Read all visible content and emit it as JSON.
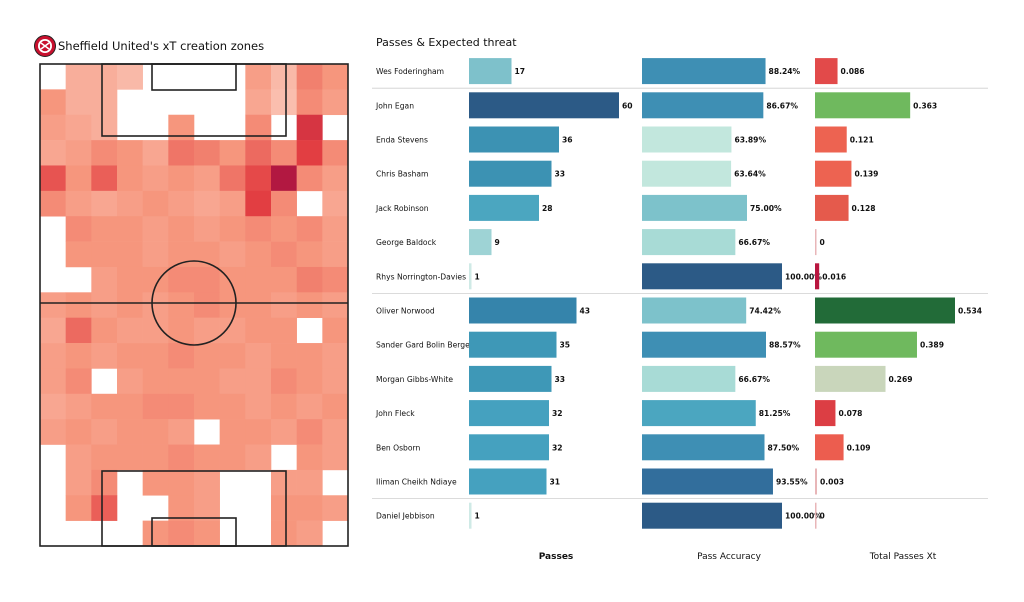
{
  "pitch": {
    "title": "Sheffield United's xT creation zones",
    "logo_icon": "sheffield-united-crest-icon",
    "grid": [
      [
        null,
        0.25,
        0.25,
        0.18,
        null,
        null,
        null,
        null,
        0.35,
        0.18,
        0.5,
        0.4
      ],
      [
        0.4,
        0.25,
        0.25,
        null,
        null,
        null,
        null,
        null,
        0.3,
        0.15,
        0.45,
        0.35
      ],
      [
        0.35,
        0.3,
        0.25,
        null,
        null,
        0.4,
        null,
        null,
        0.45,
        null,
        0.85,
        null
      ],
      [
        0.3,
        0.35,
        0.45,
        0.4,
        0.3,
        0.55,
        0.5,
        0.4,
        0.6,
        0.45,
        0.8,
        0.45
      ],
      [
        0.7,
        0.4,
        0.65,
        0.4,
        0.35,
        0.4,
        0.35,
        0.55,
        0.75,
        1.0,
        0.45,
        0.35
      ],
      [
        0.45,
        0.35,
        0.3,
        0.35,
        0.4,
        0.35,
        0.3,
        0.35,
        0.8,
        0.45,
        null,
        0.3
      ],
      [
        null,
        0.45,
        0.4,
        0.4,
        0.35,
        0.4,
        0.35,
        0.4,
        0.45,
        0.4,
        0.45,
        0.35
      ],
      [
        null,
        0.4,
        0.4,
        0.4,
        0.35,
        0.4,
        0.4,
        0.35,
        0.4,
        0.45,
        0.4,
        0.35
      ],
      [
        null,
        null,
        0.35,
        0.4,
        0.4,
        0.45,
        0.45,
        0.4,
        0.4,
        0.4,
        0.5,
        0.45
      ],
      [
        0.35,
        0.4,
        0.35,
        0.4,
        0.35,
        0.4,
        0.45,
        0.4,
        0.4,
        0.35,
        0.4,
        0.35
      ],
      [
        0.3,
        0.6,
        0.4,
        0.35,
        0.35,
        0.4,
        0.35,
        0.35,
        0.4,
        0.4,
        null,
        0.4
      ],
      [
        0.35,
        0.4,
        0.35,
        0.4,
        0.4,
        0.45,
        0.4,
        0.4,
        0.35,
        0.4,
        0.4,
        0.35
      ],
      [
        0.35,
        0.45,
        null,
        0.35,
        0.4,
        0.4,
        0.4,
        0.35,
        0.35,
        0.45,
        0.4,
        0.35
      ],
      [
        0.3,
        0.35,
        0.4,
        0.4,
        0.45,
        0.45,
        0.4,
        0.4,
        0.35,
        0.4,
        0.35,
        0.4
      ],
      [
        0.35,
        0.4,
        0.35,
        0.4,
        0.4,
        0.35,
        null,
        0.4,
        0.4,
        0.35,
        0.45,
        0.35
      ],
      [
        null,
        0.35,
        0.4,
        0.4,
        0.4,
        0.45,
        0.4,
        0.4,
        0.35,
        null,
        0.4,
        0.35
      ],
      [
        null,
        0.35,
        0.45,
        null,
        0.4,
        0.4,
        0.35,
        null,
        null,
        0.35,
        0.35,
        null
      ],
      [
        null,
        0.4,
        0.65,
        null,
        null,
        0.4,
        0.35,
        null,
        null,
        0.4,
        0.4,
        0.35
      ],
      [
        null,
        null,
        null,
        null,
        0.4,
        0.45,
        0.4,
        null,
        null,
        0.4,
        0.35,
        null
      ]
    ]
  },
  "table_title": "Passes & Expected threat",
  "column_headers": {
    "passes": "Passes",
    "accuracy": "Pass Accuracy",
    "xt": "Total Passes Xt"
  },
  "chart_data": {
    "type": "bar",
    "title": "Passes & Expected threat",
    "categories": [
      "Wes Foderingham",
      "John Egan",
      "Enda Stevens",
      "Chris Basham",
      "Jack Robinson",
      "George Baldock",
      "Rhys Norrington-Davies",
      "Oliver Norwood",
      "Sander Gard Bolin Berge",
      "Morgan Gibbs-White",
      "John Fleck",
      "Ben Osborn",
      "Iliman Cheikh Ndiaye",
      "Daniel Jebbison"
    ],
    "series": [
      {
        "name": "Passes",
        "values": [
          17,
          60,
          36,
          33,
          28,
          9,
          1,
          43,
          35,
          33,
          32,
          32,
          31,
          1
        ],
        "labels": [
          "17",
          "60",
          "36",
          "33",
          "28",
          "9",
          "1",
          "43",
          "35",
          "33",
          "32",
          "32",
          "31",
          "1"
        ]
      },
      {
        "name": "Pass Accuracy",
        "values": [
          88.24,
          86.67,
          63.89,
          63.64,
          75.0,
          66.67,
          100.0,
          74.42,
          88.57,
          66.67,
          81.25,
          87.5,
          93.55,
          100.0
        ],
        "labels": [
          "88.24%",
          "86.67%",
          "63.89%",
          "63.64%",
          "75.00%",
          "66.67%",
          "100.00%",
          "74.42%",
          "88.57%",
          "66.67%",
          "81.25%",
          "87.50%",
          "93.55%",
          "100.00%"
        ]
      },
      {
        "name": "Total Passes Xt",
        "values": [
          0.086,
          0.363,
          0.121,
          0.139,
          0.128,
          0,
          0.016,
          0.534,
          0.389,
          0.269,
          0.078,
          0.109,
          0.003,
          0
        ],
        "labels": [
          "0.086",
          "0.363",
          "0.121",
          "0.139",
          "0.128",
          "0",
          "0.016",
          "0.534",
          "0.389",
          "0.269",
          "0.078",
          "0.109",
          "0.003",
          "0"
        ]
      }
    ],
    "group_breaks_after": [
      0,
      6,
      12
    ],
    "colors": {
      "passes": [
        "#7ec1cb",
        "#2c5a86",
        "#3c92b3",
        "#3c92b3",
        "#4ba6c0",
        "#9ed3d5",
        "#cfeae6",
        "#3584ab",
        "#3e98b7",
        "#3e98b7",
        "#45a1bf",
        "#45a1bf",
        "#45a1bf",
        "#cfeae6"
      ],
      "accuracy": [
        "#3e8fb4",
        "#3e8fb4",
        "#c2e7dd",
        "#c2e7dd",
        "#7dc2cb",
        "#a8dbd6",
        "#2c5a86",
        "#7dc2cb",
        "#3e8fb4",
        "#a8dbd6",
        "#4ba6c0",
        "#3e8fb4",
        "#326e9c",
        "#2c5a86"
      ],
      "xt": [
        "#e24a4a",
        "#6fb95e",
        "#ed6351",
        "#ed6351",
        "#e55a4c",
        "#e8b6b8",
        "#b9163f",
        "#226b38",
        "#6fb95e",
        "#c9d6bb",
        "#dc3e44",
        "#ec5d4f",
        "#e8b6b8",
        "#e8b6b8"
      ]
    }
  }
}
